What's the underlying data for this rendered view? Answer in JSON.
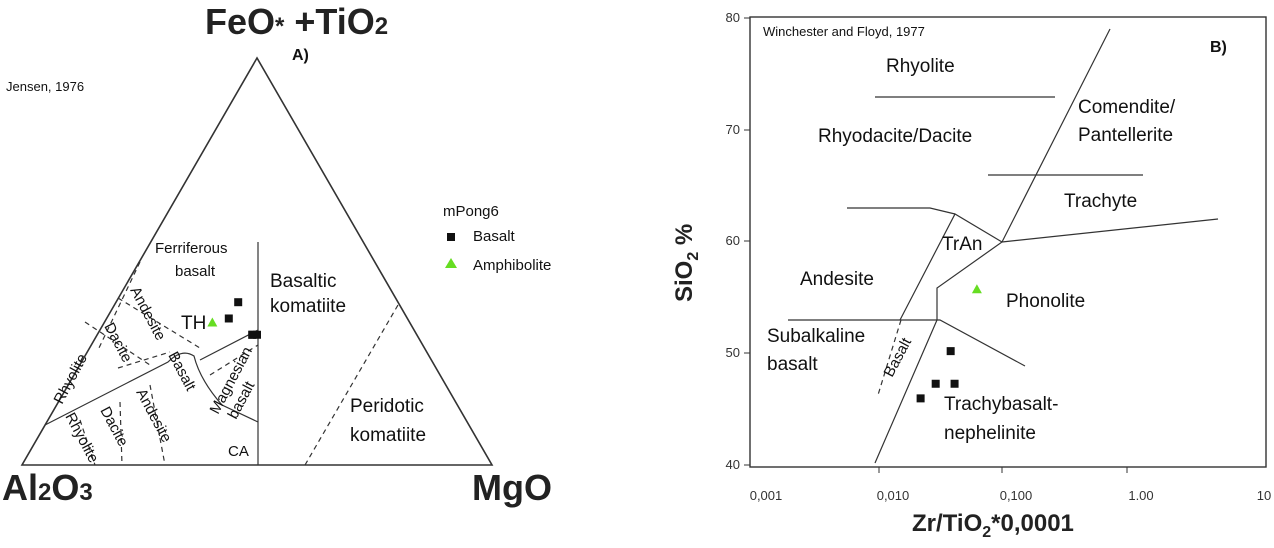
{
  "chart_data": [
    {
      "type": "scatter",
      "panel_label": "A)",
      "source": "Jensen, 1976",
      "corners": {
        "top": {
          "main": "FeO",
          "mark": "*",
          "rest": " +TiO",
          "sub": "2"
        },
        "left": {
          "main": "Al",
          "sub1": "2",
          "mid": "O",
          "sub2": "3"
        },
        "right": {
          "main": "MgO"
        }
      },
      "fields": {
        "ferriferous": [
          "Ferriferous",
          "basalt"
        ],
        "basaltic_komatiite": [
          "Basaltic",
          "komatiite"
        ],
        "th": "TH",
        "ca": "CA",
        "andesite_th": "Andesite",
        "dacite_th": "Dacite",
        "rhyolite_th": "Rhyolite",
        "basalt_ca": "Basalt",
        "andesite_ca": "Andesite",
        "dacite_ca": "Dacite",
        "rhyolite_ca": "Rhyolite",
        "magnesian": [
          "Magnesian",
          "basalt"
        ],
        "peridotic": [
          "Peridotic",
          "komatiite"
        ]
      },
      "legend": {
        "title": "mPong6",
        "placement": "right",
        "items": [
          {
            "label": "Basalt",
            "marker": "square",
            "color": "#111111"
          },
          {
            "label": "Amphibolite",
            "marker": "triangle",
            "color": "#66dd22"
          }
        ]
      },
      "series": [
        {
          "name": "Basalt",
          "marker": "square",
          "color": "#111111",
          "points": [
            {
              "al2o3": 34,
              "feo_tio2": 40,
              "mgo": 26
            },
            {
              "al2o3": 38,
              "feo_tio2": 36,
              "mgo": 26
            },
            {
              "al2o3": 35,
              "feo_tio2": 32,
              "mgo": 33
            },
            {
              "al2o3": 35,
              "feo_tio2": 32,
              "mgo": 33
            },
            {
              "al2o3": 34,
              "feo_tio2": 32,
              "mgo": 34
            }
          ]
        },
        {
          "name": "Amphibolite",
          "marker": "triangle",
          "color": "#66dd22",
          "points": [
            {
              "al2o3": 42,
              "feo_tio2": 35,
              "mgo": 23
            }
          ]
        }
      ]
    },
    {
      "type": "scatter",
      "panel_label": "B)",
      "source": "Winchester and Floyd, 1977",
      "xlabel": {
        "main": "Zr/TiO",
        "sub": "2",
        "rest": "*0,0001"
      },
      "ylabel": {
        "main": "SiO",
        "sub": "2",
        "rest": " %"
      },
      "xscale": "log",
      "xlim": [
        0.0001,
        10
      ],
      "ylim": [
        40,
        80
      ],
      "x_ticks": [
        {
          "value": 0.001,
          "label": "0,001"
        },
        {
          "value": 0.01,
          "label": "0,010"
        },
        {
          "value": 0.1,
          "label": "0,100"
        },
        {
          "value": 1,
          "label": "1.00"
        },
        {
          "value": 10,
          "label": "10"
        }
      ],
      "y_ticks": [
        {
          "value": 40,
          "label": "40"
        },
        {
          "value": 50,
          "label": "50"
        },
        {
          "value": 60,
          "label": "60"
        },
        {
          "value": 70,
          "label": "70"
        },
        {
          "value": 80,
          "label": "80"
        }
      ],
      "fields": {
        "rhyolite": "Rhyolite",
        "comendite": [
          "Comendite/",
          "Pantellerite"
        ],
        "rhyodacite": "Rhyodacite/Dacite",
        "trachyte": "Trachyte",
        "tran": "TrAn",
        "andesite": "Andesite",
        "phonolite": "Phonolite",
        "subalkaline": [
          "Subalkaline",
          "basalt"
        ],
        "basalt": "Basalt",
        "trachybasalt": [
          "Trachybasalt-",
          "nephelinite"
        ]
      },
      "series": [
        {
          "name": "Basalt",
          "marker": "square",
          "color": "#111111",
          "points": [
            {
              "x": 0.0045,
              "y": 46.1
            },
            {
              "x": 0.0063,
              "y": 47.4
            },
            {
              "x": 0.0096,
              "y": 47.4
            },
            {
              "x": 0.0088,
              "y": 50.3
            }
          ]
        },
        {
          "name": "Amphibolite",
          "marker": "triangle",
          "color": "#66dd22",
          "points": [
            {
              "x": 0.0158,
              "y": 55.8
            }
          ]
        }
      ]
    }
  ]
}
